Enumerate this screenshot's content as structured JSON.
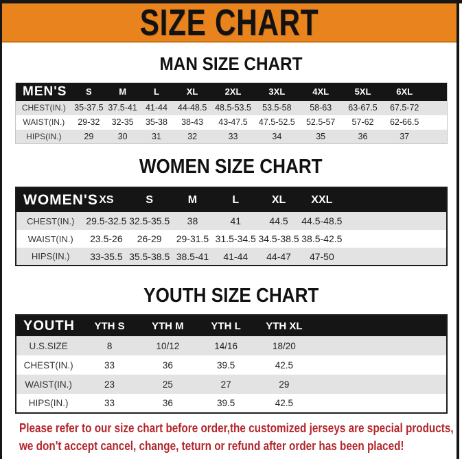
{
  "banner": {
    "title": "SIZE CHART",
    "bg_color": "#e8831e"
  },
  "sections": [
    {
      "heading": "MAN SIZE CHART",
      "table_label": "MEN'S",
      "columns": [
        "S",
        "M",
        "L",
        "XL",
        "2XL",
        "3XL",
        "4XL",
        "5XL",
        "6XL"
      ],
      "rows": [
        {
          "label": "CHEST(IN.)",
          "values": [
            "35-37.5",
            "37.5-41",
            "41-44",
            "44-48.5",
            "48.5-53.5",
            "53.5-58",
            "58-63",
            "63-67.5",
            "67.5-72"
          ]
        },
        {
          "label": "WAIST(IN.)",
          "values": [
            "29-32",
            "32-35",
            "35-38",
            "38-43",
            "43-47.5",
            "47.5-52.5",
            "52.5-57",
            "57-62",
            "62-66.5"
          ]
        },
        {
          "label": "HIPS(IN.)",
          "values": [
            "29",
            "30",
            "31",
            "32",
            "33",
            "34",
            "35",
            "36",
            "37"
          ]
        }
      ]
    },
    {
      "heading": "WOMEN SIZE CHART",
      "table_label": "WOMEN'S",
      "columns": [
        "XS",
        "S",
        "M",
        "L",
        "XL",
        "XXL"
      ],
      "rows": [
        {
          "label": "CHEST(IN.)",
          "values": [
            "29.5-32.5",
            "32.5-35.5",
            "38",
            "41",
            "44.5",
            "44.5-48.5"
          ]
        },
        {
          "label": "WAIST(IN.)",
          "values": [
            "23.5-26",
            "26-29",
            "29-31.5",
            "31.5-34.5",
            "34.5-38.5",
            "38.5-42.5"
          ]
        },
        {
          "label": "HIPS(IN.)",
          "values": [
            "33-35.5",
            "35.5-38.5",
            "38.5-41",
            "41-44",
            "44-47",
            "47-50"
          ]
        }
      ]
    },
    {
      "heading": "YOUTH SIZE CHART",
      "table_label": "YOUTH",
      "columns": [
        "YTH S",
        "YTH M",
        "YTH L",
        "YTH XL"
      ],
      "rows": [
        {
          "label": "U.S.SIZE",
          "values": [
            "8",
            "10/12",
            "14/16",
            "18/20"
          ]
        },
        {
          "label": "CHEST(IN.)",
          "values": [
            "33",
            "36",
            "39.5",
            "42.5"
          ]
        },
        {
          "label": "WAIST(IN.)",
          "values": [
            "23",
            "25",
            "27",
            "29"
          ]
        },
        {
          "label": "HIPS(IN.)",
          "values": [
            "33",
            "36",
            "39.5",
            "42.5"
          ]
        }
      ]
    }
  ],
  "disclaimer": {
    "color": "#b4262b",
    "lines": [
      "Please refer to our size chart before order,the customized jerseys are special products,",
      "we don't accept cancel, change, teturn or refund after order has been placed!"
    ]
  }
}
